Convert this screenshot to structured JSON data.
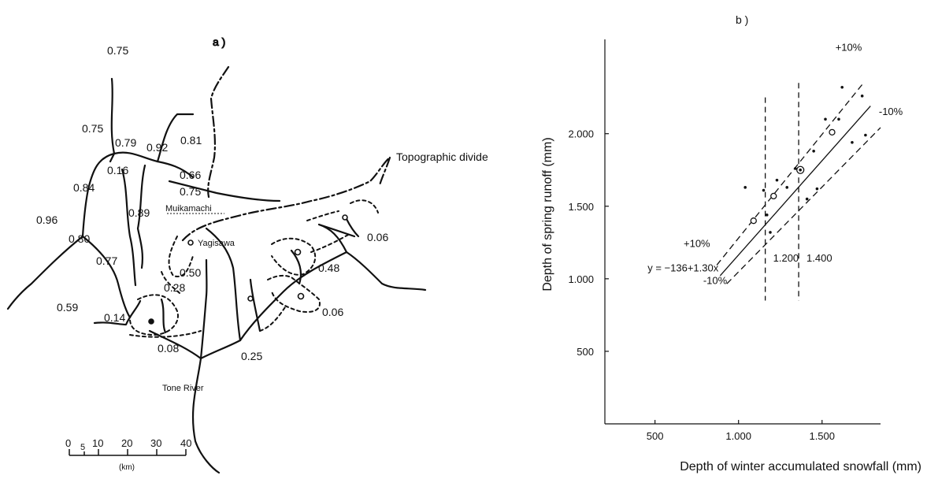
{
  "panel_a": {
    "label": "a )",
    "coefficients": [
      {
        "text": "0.75"
      },
      {
        "text": "0.75"
      },
      {
        "text": "0.79"
      },
      {
        "text": "0.92"
      },
      {
        "text": "0.81"
      },
      {
        "text": "0.16"
      },
      {
        "text": "0.84"
      },
      {
        "text": "0.66"
      },
      {
        "text": "0.75"
      },
      {
        "text": "0.89"
      },
      {
        "text": "0.96"
      },
      {
        "text": "0.80"
      },
      {
        "text": "0.77"
      },
      {
        "text": "0.59"
      },
      {
        "text": "0.50"
      },
      {
        "text": "0.28"
      },
      {
        "text": "0.14"
      },
      {
        "text": "0.08"
      },
      {
        "text": "0.25"
      },
      {
        "text": "0.48"
      },
      {
        "text": "0.06"
      },
      {
        "text": "0.06"
      }
    ],
    "places": {
      "muikamachi": "Muikamachi",
      "yagisawa": "Yagisawa",
      "tone_river": "Tone River",
      "divide": "Topographic divide"
    },
    "scale_bar": {
      "ticks": [
        "0",
        "5",
        "10",
        "20",
        "30",
        "40"
      ],
      "unit": "(km)"
    }
  },
  "chart_data": {
    "type": "scatter",
    "title": "b )",
    "xlabel": "Depth of winter accumulated snowfall (mm)",
    "ylabel": "Depth of spring runoff (mm)",
    "xlim": [
      200,
      1850
    ],
    "ylim": [
      0,
      2650
    ],
    "xticks": [
      {
        "value": 500,
        "label": "500"
      },
      {
        "value": 1000,
        "label": "1.000"
      },
      {
        "value": 1500,
        "label": "1.500"
      }
    ],
    "yticks": [
      {
        "value": 500,
        "label": "500"
      },
      {
        "value": 1000,
        "label": "1.000"
      },
      {
        "value": 1500,
        "label": "1.500"
      },
      {
        "value": 2000,
        "label": "2.000"
      }
    ],
    "grid": false,
    "points": [
      {
        "x": 1040,
        "y": 1630,
        "marker": "dot"
      },
      {
        "x": 1090,
        "y": 1400,
        "marker": "circle"
      },
      {
        "x": 1150,
        "y": 1610,
        "marker": "dot"
      },
      {
        "x": 1170,
        "y": 1440,
        "marker": "dot"
      },
      {
        "x": 1190,
        "y": 1320,
        "marker": "dot"
      },
      {
        "x": 1210,
        "y": 1570,
        "marker": "circle"
      },
      {
        "x": 1230,
        "y": 1680,
        "marker": "dot"
      },
      {
        "x": 1290,
        "y": 1630,
        "marker": "dot"
      },
      {
        "x": 1340,
        "y": 1760,
        "marker": "dot"
      },
      {
        "x": 1370,
        "y": 1750,
        "marker": "double-circle"
      },
      {
        "x": 1410,
        "y": 1550,
        "marker": "dot"
      },
      {
        "x": 1450,
        "y": 1880,
        "marker": "dot"
      },
      {
        "x": 1470,
        "y": 1620,
        "marker": "dot"
      },
      {
        "x": 1520,
        "y": 2100,
        "marker": "dot"
      },
      {
        "x": 1560,
        "y": 2010,
        "marker": "circle"
      },
      {
        "x": 1600,
        "y": 2100,
        "marker": "dot"
      },
      {
        "x": 1620,
        "y": 2320,
        "marker": "dot"
      },
      {
        "x": 1680,
        "y": 1940,
        "marker": "dot"
      },
      {
        "x": 1740,
        "y": 2260,
        "marker": "dot"
      },
      {
        "x": 1760,
        "y": 1990,
        "marker": "dot"
      }
    ],
    "regression": {
      "label": "y = −136+1.30x",
      "intercept": -136,
      "slope": 1.3,
      "x_range": [
        890,
        1790
      ]
    },
    "bands": [
      {
        "label": "+10%",
        "factor": 1.1,
        "x_range": [
          870,
          1740
        ]
      },
      {
        "label": "-10%",
        "factor": 0.9,
        "x_range": [
          930,
          1850
        ]
      }
    ],
    "vertical_lines": [
      {
        "x": 1160,
        "label": "1.200",
        "y_range": [
          850,
          2250
        ]
      },
      {
        "x": 1360,
        "label": "1.400",
        "y_range": [
          850,
          2350
        ]
      }
    ]
  }
}
